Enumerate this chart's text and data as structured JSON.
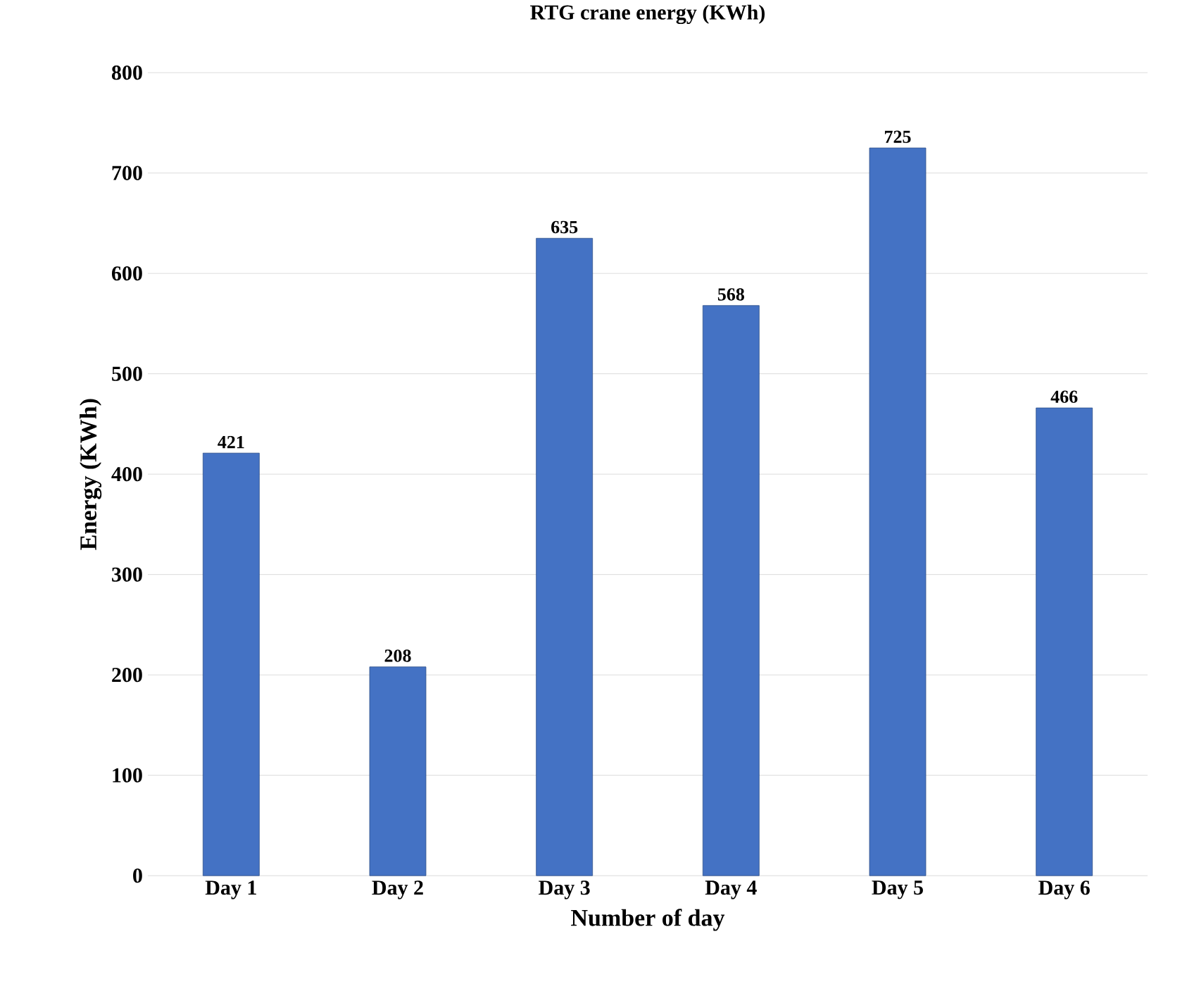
{
  "chart_data": {
    "type": "bar",
    "title": "RTG crane energy (KWh)",
    "xlabel": "Number of day",
    "ylabel": "Energy (KWh)",
    "categories": [
      "Day 1",
      "Day 2",
      "Day 3",
      "Day 4",
      "Day 5",
      "Day 6"
    ],
    "values": [
      421,
      208,
      635,
      568,
      725,
      466
    ],
    "color": "#4472c4",
    "ylim": [
      0,
      800
    ],
    "yticks": [
      0,
      100,
      200,
      300,
      400,
      500,
      600,
      700,
      800
    ],
    "grid": "y",
    "data_labels": true
  }
}
